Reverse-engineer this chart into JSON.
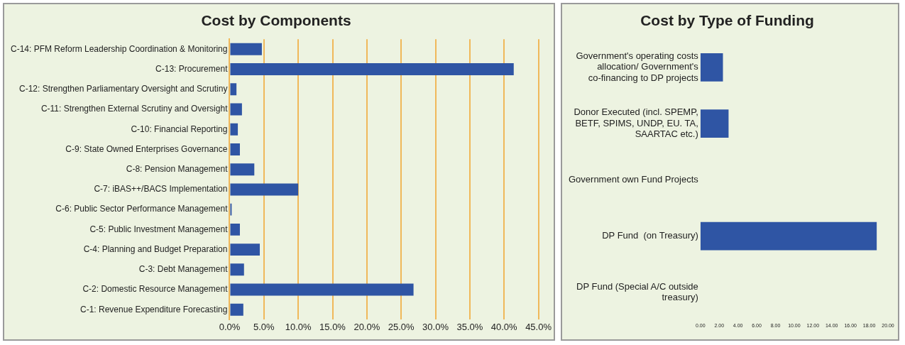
{
  "chart_data": [
    {
      "type": "bar",
      "orientation": "horizontal",
      "title": "Cost by Components",
      "categories": [
        "C-14: PFM Reform Leadership Coordination & Monitoring",
        "C-13: Procurement",
        "C-12: Strengthen Parliamentary Oversight and Scrutiny",
        "C-11: Strengthen External Scrutiny and Oversight",
        "C-10: Financial Reporting",
        "C-9: State Owned Enterprises Governance",
        "C-8: Pension Management",
        "C-7: iBAS++/BACS Implementation",
        "C-6: Public Sector Performance Management",
        "C-5: Public Investment Management",
        "C-4: Planning and Budget Preparation",
        "C-3: Debt Management",
        "C-2: Domestic Resource Management",
        "C-1: Revenue Expenditure Forecasting"
      ],
      "values": [
        4.7,
        41.4,
        1.0,
        1.8,
        1.2,
        1.5,
        3.6,
        10.0,
        0.3,
        1.5,
        4.4,
        2.1,
        26.8,
        2.0
      ],
      "color": "#2f55a4",
      "xlim": [
        0,
        45
      ],
      "xticks": [
        {
          "value": 0,
          "label": "0.0%"
        },
        {
          "value": 5,
          "label": "5.0%"
        },
        {
          "value": 10,
          "label": "10.0%"
        },
        {
          "value": 15,
          "label": "15.0%"
        },
        {
          "value": 20,
          "label": "20.0%"
        },
        {
          "value": 25,
          "label": "25.0%"
        },
        {
          "value": 30,
          "label": "30.0%"
        },
        {
          "value": 35,
          "label": "35.0%"
        },
        {
          "value": 40,
          "label": "40.0%"
        },
        {
          "value": 45,
          "label": "45.0%"
        }
      ],
      "grid": "x",
      "legend": false
    },
    {
      "type": "bar",
      "orientation": "horizontal",
      "title": "Cost by Type of Funding",
      "categories": [
        "Government's operating costs allocation/ Government's co-financing to DP projects",
        "Donor Executed (incl. SPEMP, BETF, SPIMS, UNDP, EU. TA, SAARTAC etc.)",
        "Government own Fund Projects",
        "DP Fund  (on Treasury)",
        "DP Fund (Special A/C outside treasury)"
      ],
      "values": [
        2.4,
        3.0,
        0,
        18.8,
        0
      ],
      "color": "#2f55a4",
      "xlim": [
        0,
        20
      ],
      "xticks": [
        {
          "value": 0,
          "label": "0.00"
        },
        {
          "value": 2,
          "label": "2.00"
        },
        {
          "value": 4,
          "label": "4.00"
        },
        {
          "value": 6,
          "label": "6.00"
        },
        {
          "value": 8,
          "label": "8.00"
        },
        {
          "value": 10,
          "label": "10.00"
        },
        {
          "value": 12,
          "label": "12.00"
        },
        {
          "value": 14,
          "label": "14.00"
        },
        {
          "value": 16,
          "label": "16.00"
        },
        {
          "value": 18,
          "label": "18.00"
        },
        {
          "value": 20,
          "label": "20.00"
        }
      ],
      "grid": false,
      "legend": false
    }
  ]
}
